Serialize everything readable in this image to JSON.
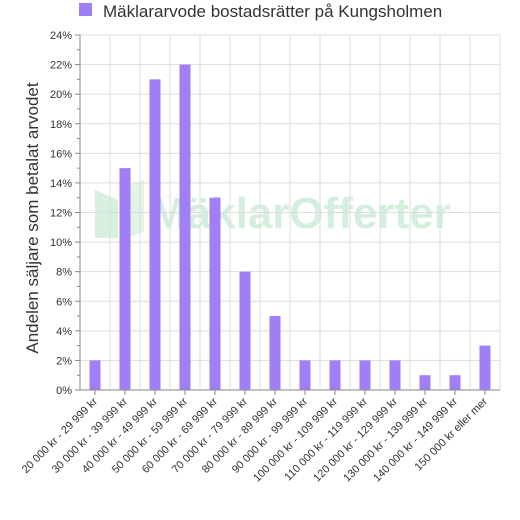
{
  "chart_data": {
    "type": "bar",
    "title": "",
    "legend_position": "top",
    "series": [
      {
        "name": "Mäklararvode bostadsrätter på Kungsholmen",
        "color": "#a07ef5",
        "values": [
          2,
          15,
          21,
          22,
          13,
          8,
          5,
          2,
          2,
          2,
          2,
          1,
          1,
          3
        ]
      }
    ],
    "categories": [
      "20 000 kr - 29 999 kr",
      "30 000 kr - 39 999 kr",
      "40 000 kr - 49 999 kr",
      "50 000 kr - 59 999 kr",
      "60 000 kr - 69 999 kr",
      "70 000 kr - 79 999 kr",
      "80 000 kr - 89 999 kr",
      "90 000 kr - 99 999 kr",
      "100 000 kr - 109 999 kr",
      "110 000 kr - 119 999 kr",
      "120 000 kr - 129 999 kr",
      "130 000 kr - 139 999 kr",
      "140 000 kr - 149 999 kr",
      "150 000 kr eller mer"
    ],
    "xlabel": "",
    "ylabel": "Andelen säljare som betalat arvodet",
    "ylim": [
      0,
      24
    ],
    "yticks": [
      "0%",
      "2%",
      "4%",
      "6%",
      "8%",
      "10%",
      "12%",
      "14%",
      "16%",
      "18%",
      "20%",
      "22%",
      "24%"
    ],
    "grid": true,
    "watermark": "MäklarOfferter",
    "watermark_color": "#c8ead4"
  }
}
